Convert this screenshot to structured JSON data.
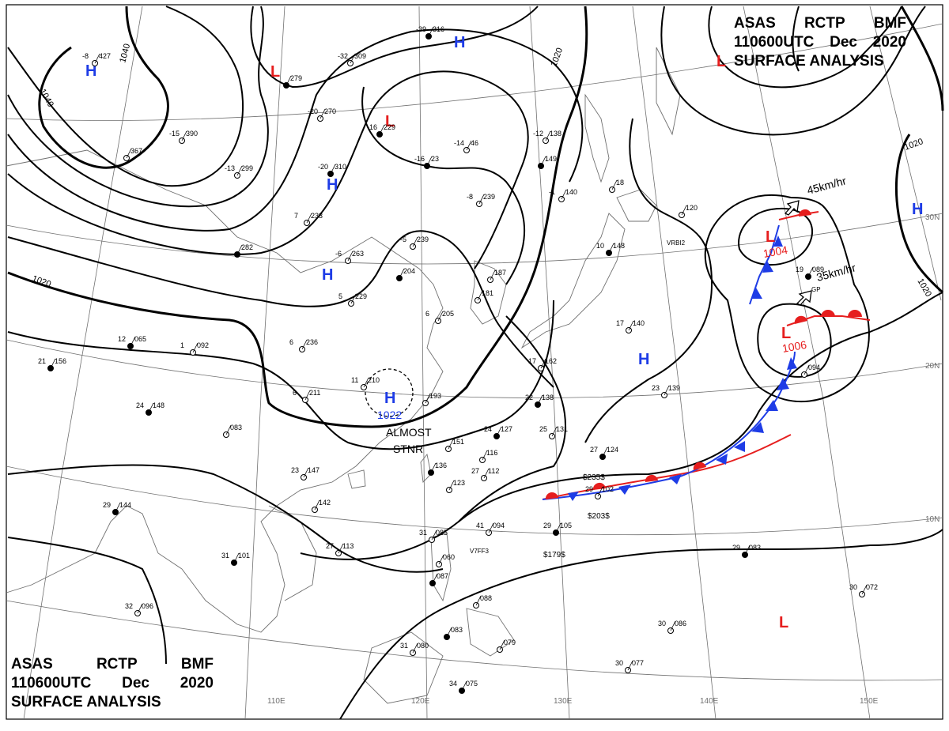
{
  "header": {
    "agency_parts": [
      "ASAS",
      "RCTP",
      "BMF"
    ],
    "time_parts": [
      "110600UTC",
      "Dec",
      "2020"
    ],
    "title": "SURFACE ANALYSIS"
  },
  "longitude_labels": [
    "110E",
    "120E",
    "130E",
    "140E",
    "150E"
  ],
  "latitude_labels": [
    "30N",
    "20N",
    "10N"
  ],
  "isobar_labels": [
    "1040",
    "1040",
    "1020",
    "1020",
    "1020",
    "1020"
  ],
  "pressure_centers": [
    {
      "type": "H",
      "value": ""
    },
    {
      "type": "H",
      "value": ""
    },
    {
      "type": "H",
      "value": ""
    },
    {
      "type": "H",
      "value": ""
    },
    {
      "type": "H",
      "value": "1022"
    },
    {
      "type": "H",
      "value": ""
    },
    {
      "type": "H",
      "value": ""
    },
    {
      "type": "L",
      "value": ""
    },
    {
      "type": "L",
      "value": ""
    },
    {
      "type": "L",
      "value": "1004"
    },
    {
      "type": "L",
      "value": "1006"
    },
    {
      "type": "L",
      "value": ""
    },
    {
      "type": "L",
      "value": ""
    }
  ],
  "system_notes": {
    "motion_1": "45km/hr",
    "motion_2": "35km/hr",
    "stationary_line1": "ALMOST",
    "stationary_line2": "STNR"
  },
  "station_plots": [
    {
      "t": "-39",
      "p": "316"
    },
    {
      "t": "-32",
      "p": "309"
    },
    {
      "t": "-8",
      "p": "427"
    },
    {
      "t": "",
      "p": "279"
    },
    {
      "t": "-20",
      "p": "270"
    },
    {
      "t": "-15",
      "p": "390"
    },
    {
      "t": "-16",
      "p": "229"
    },
    {
      "t": "-12",
      "p": "138"
    },
    {
      "t": "-14",
      "p": "46"
    },
    {
      "t": "-16",
      "p": "23"
    },
    {
      "t": "",
      "p": "367"
    },
    {
      "t": "-13",
      "p": "299"
    },
    {
      "t": "-20",
      "p": "310"
    },
    {
      "t": "-8",
      "p": "239"
    },
    {
      "t": "-1",
      "p": "140"
    },
    {
      "t": "",
      "p": "149"
    },
    {
      "t": "",
      "p": "18"
    },
    {
      "t": "7",
      "p": "233"
    },
    {
      "t": "",
      "p": "282"
    },
    {
      "t": "-6",
      "p": "263"
    },
    {
      "t": "-5",
      "p": "239"
    },
    {
      "t": "",
      "p": "204"
    },
    {
      "t": "",
      "p": "187"
    },
    {
      "t": "",
      "p": "181"
    },
    {
      "t": "10",
      "p": "148"
    },
    {
      "t": "5",
      "p": "229"
    },
    {
      "t": "6",
      "p": "205"
    },
    {
      "t": "12",
      "p": "065"
    },
    {
      "t": "1",
      "p": "092"
    },
    {
      "t": "6",
      "p": "236"
    },
    {
      "t": "21",
      "p": "156"
    },
    {
      "t": "11",
      "p": "210"
    },
    {
      "t": "6",
      "p": "211"
    },
    {
      "t": "24",
      "p": "148"
    },
    {
      "t": "",
      "p": "193"
    },
    {
      "t": "",
      "p": "083"
    },
    {
      "t": "22",
      "p": "138"
    },
    {
      "t": "17",
      "p": "162"
    },
    {
      "t": "17",
      "p": "140"
    },
    {
      "t": "19",
      "p": "089"
    },
    {
      "t": "",
      "p": "120"
    },
    {
      "t": "23",
      "p": "139"
    },
    {
      "t": "24",
      "p": "127"
    },
    {
      "t": "25",
      "p": "131"
    },
    {
      "t": "",
      "p": "151"
    },
    {
      "t": "27",
      "p": "124"
    },
    {
      "t": "",
      "p": "116"
    },
    {
      "t": "27",
      "p": "112"
    },
    {
      "t": "",
      "p": "136"
    },
    {
      "t": "",
      "p": "123"
    },
    {
      "t": "23",
      "p": "147"
    },
    {
      "t": "29",
      "p": "144"
    },
    {
      "t": "",
      "p": "142"
    },
    {
      "t": "27",
      "p": "113"
    },
    {
      "t": "31",
      "p": "101"
    },
    {
      "t": "29",
      "p": "102"
    },
    {
      "t": "41",
      "p": "094"
    },
    {
      "t": "29",
      "p": "105"
    },
    {
      "t": "31",
      "p": "085"
    },
    {
      "t": "",
      "p": "060"
    },
    {
      "t": "",
      "p": "087"
    },
    {
      "t": "32",
      "p": "096"
    },
    {
      "t": "",
      "p": "088"
    },
    {
      "t": "",
      "p": "083"
    },
    {
      "t": "31",
      "p": "080"
    },
    {
      "t": "",
      "p": "079"
    },
    {
      "t": "34",
      "p": "075"
    },
    {
      "t": "30",
      "p": "086"
    },
    {
      "t": "30",
      "p": "077"
    },
    {
      "t": "29",
      "p": "083"
    },
    {
      "t": "30",
      "p": "072"
    },
    {
      "t": "",
      "p": "094"
    }
  ],
  "ship_reports": [
    "$235$",
    "$203$",
    "$179$"
  ],
  "station_ids": [
    "VRBI2",
    "V7FF3",
    "GP"
  ],
  "colors": {
    "high": "#1e3ce6",
    "low": "#e61e1e",
    "warm_front": "#e61e1e",
    "cold_front": "#1e3ce6",
    "isobar": "#000000",
    "grid": "#707070",
    "coast": "#707070"
  }
}
